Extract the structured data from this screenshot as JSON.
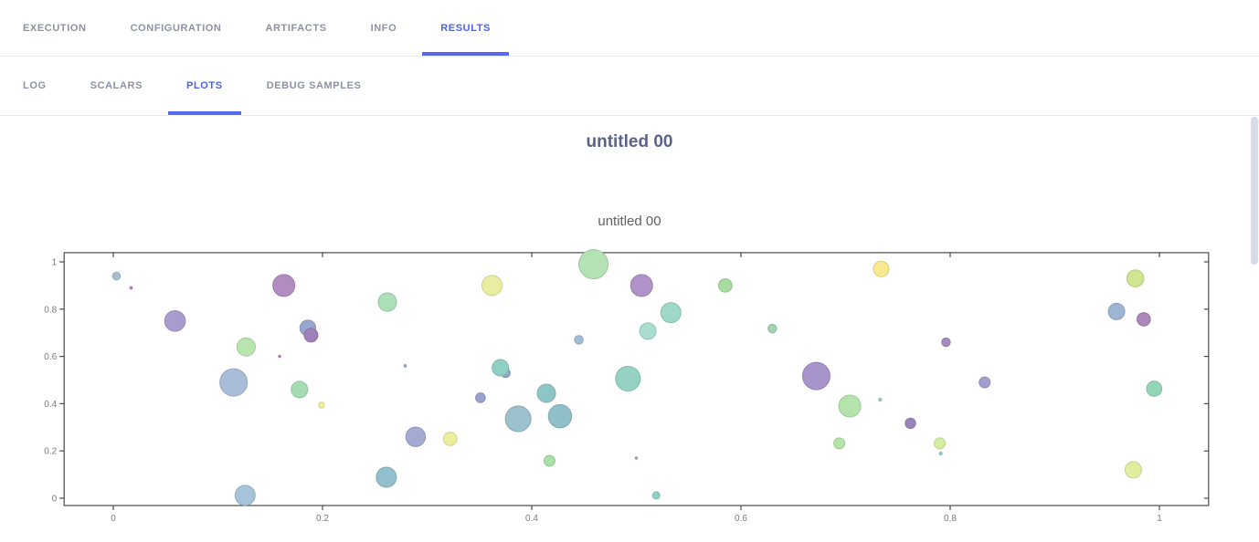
{
  "nav": {
    "tabs": [
      {
        "label": "EXECUTION",
        "active": false
      },
      {
        "label": "CONFIGURATION",
        "active": false
      },
      {
        "label": "ARTIFACTS",
        "active": false
      },
      {
        "label": "INFO",
        "active": false
      },
      {
        "label": "RESULTS",
        "active": true
      }
    ],
    "subtabs": [
      {
        "label": "LOG",
        "active": false
      },
      {
        "label": "SCALARS",
        "active": false
      },
      {
        "label": "PLOTS",
        "active": true
      },
      {
        "label": "DEBUG SAMPLES",
        "active": false
      }
    ]
  },
  "page_title": "untitled 00",
  "accent_color": "#4a63ec",
  "chart_data": {
    "type": "scatter",
    "title": "untitled 00",
    "xlabel": "",
    "ylabel": "",
    "xlim": [
      -0.047,
      1.047
    ],
    "ylim": [
      -0.031,
      1.039
    ],
    "x_ticks": [
      0,
      0.2,
      0.4,
      0.6,
      0.8,
      1
    ],
    "y_ticks": [
      0,
      0.2,
      0.4,
      0.6,
      0.8,
      1
    ],
    "grid": false,
    "legend": false,
    "point_format": [
      "x",
      "y",
      "radius_px",
      "color"
    ],
    "points": [
      [
        0.003,
        0.94,
        4.3,
        "#a3c0d6"
      ],
      [
        0.017,
        0.89,
        1.4,
        "#b08cc0"
      ],
      [
        0.059,
        0.75,
        11.3,
        "#a99bce"
      ],
      [
        0.127,
        0.64,
        10,
        "#b9e6ae"
      ],
      [
        0.115,
        0.49,
        15,
        "#a9bdd9"
      ],
      [
        0.126,
        0.012,
        11,
        "#a5c4da"
      ],
      [
        0.163,
        0.9,
        12,
        "#b08cc0"
      ],
      [
        0.186,
        0.72,
        8.7,
        "#98a7d0"
      ],
      [
        0.189,
        0.69,
        7.5,
        "#9f80b8"
      ],
      [
        0.159,
        0.6,
        1.2,
        "#b08cc0"
      ],
      [
        0.178,
        0.46,
        9,
        "#a5dbb5"
      ],
      [
        0.199,
        0.394,
        3.2,
        "#eef0a0"
      ],
      [
        0.262,
        0.83,
        10,
        "#aadfb8"
      ],
      [
        0.279,
        0.56,
        1.3,
        "#9aa8d4"
      ],
      [
        0.289,
        0.26,
        10.7,
        "#a3abd3"
      ],
      [
        0.322,
        0.251,
        7.3,
        "#ecef9e"
      ],
      [
        0.261,
        0.089,
        11,
        "#92c0cd"
      ],
      [
        0.362,
        0.9,
        11,
        "#e8eda1"
      ],
      [
        0.351,
        0.425,
        5.3,
        "#9aa3cc"
      ],
      [
        0.375,
        0.53,
        5,
        "#93a8c8"
      ],
      [
        0.37,
        0.552,
        9,
        "#8fcfc4"
      ],
      [
        0.387,
        0.336,
        14,
        "#9cc0cc"
      ],
      [
        0.414,
        0.444,
        10,
        "#8ec6c6"
      ],
      [
        0.427,
        0.347,
        12.7,
        "#8fbfc9"
      ],
      [
        0.417,
        0.158,
        6,
        "#a8e0a8"
      ],
      [
        0.459,
        0.99,
        16,
        "#b4e2b4"
      ],
      [
        0.445,
        0.67,
        4.7,
        "#a4bcd4"
      ],
      [
        0.505,
        0.9,
        12,
        "#af93c8"
      ],
      [
        0.585,
        0.9,
        7.3,
        "#a8dba0"
      ],
      [
        0.734,
        0.97,
        8.5,
        "#f8e98f"
      ],
      [
        0.533,
        0.785,
        11,
        "#9ed8c8"
      ],
      [
        0.511,
        0.707,
        9,
        "#a8ddd0"
      ],
      [
        0.63,
        0.718,
        4.7,
        "#9fd4af"
      ],
      [
        0.492,
        0.506,
        13.5,
        "#96d2c4"
      ],
      [
        0.672,
        0.517,
        15,
        "#a794cb"
      ],
      [
        0.704,
        0.39,
        12,
        "#b4e4ac"
      ],
      [
        0.733,
        0.417,
        1.5,
        "#9fd4af"
      ],
      [
        0.762,
        0.317,
        5.7,
        "#9b84bb"
      ],
      [
        0.694,
        0.232,
        6,
        "#b2e3a7"
      ],
      [
        0.79,
        0.232,
        6,
        "#d3eda3"
      ],
      [
        0.791,
        0.189,
        1.5,
        "#8fd0d0"
      ],
      [
        0.5,
        0.17,
        1.2,
        "#b0a0cc"
      ],
      [
        0.519,
        0.012,
        4,
        "#8fd0c8"
      ],
      [
        0.796,
        0.66,
        4.7,
        "#a58bbd"
      ],
      [
        0.833,
        0.49,
        6,
        "#a29ed0"
      ],
      [
        0.959,
        0.79,
        9,
        "#9db5d2"
      ],
      [
        0.977,
        0.93,
        9.3,
        "#cde68f"
      ],
      [
        0.985,
        0.757,
        7.3,
        "#ad86ba"
      ],
      [
        0.995,
        0.463,
        8.3,
        "#93d5b4"
      ],
      [
        0.975,
        0.12,
        9,
        "#e3eda0"
      ]
    ],
    "axis_color": "#4a4a4a",
    "tick_label_color": "#7a7a7a"
  }
}
